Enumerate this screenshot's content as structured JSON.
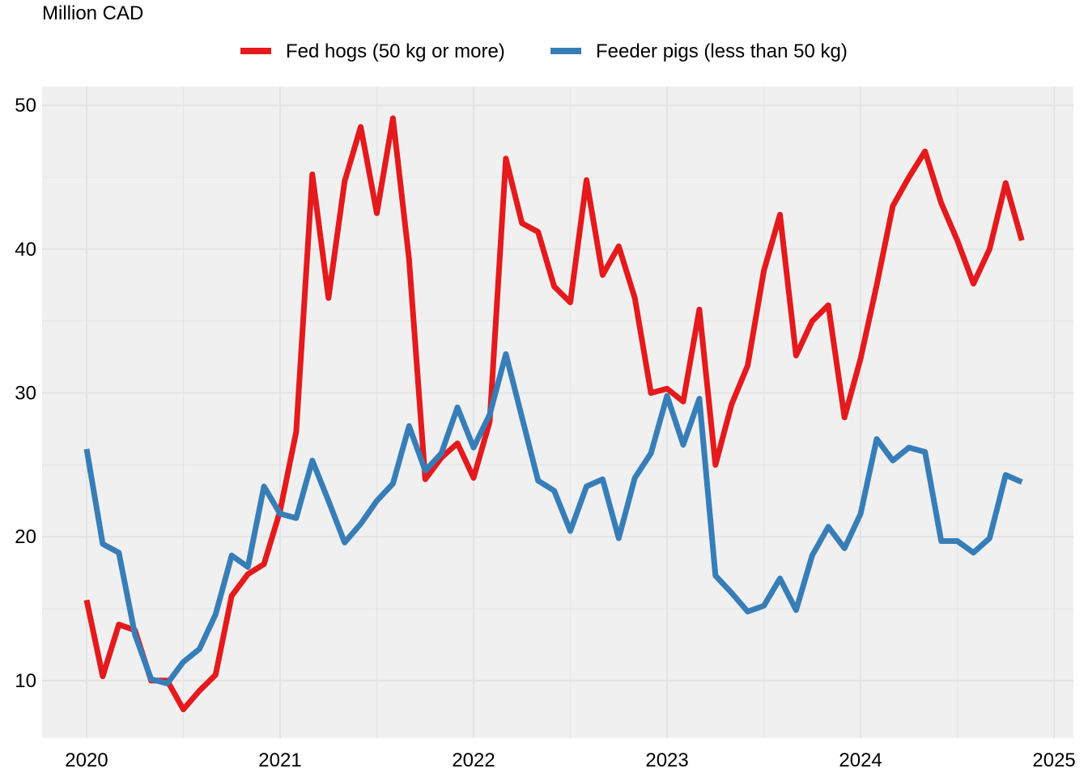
{
  "chart_data": {
    "type": "line",
    "title": "",
    "ylabel": "Million CAD",
    "xlabel": "",
    "xlim": [
      2019.77,
      2025.1
    ],
    "ylim": [
      6.0,
      51.3
    ],
    "x_ticks": [
      2020,
      2021,
      2022,
      2023,
      2024,
      2025
    ],
    "x_tick_labels": [
      "2020",
      "2021",
      "2022",
      "2023",
      "2024",
      "2025"
    ],
    "y_ticks": [
      10,
      20,
      30,
      40,
      50
    ],
    "y_tick_labels": [
      "10",
      "20",
      "30",
      "40",
      "50"
    ],
    "grid": true,
    "legend_position": "top",
    "background_color": "#f0f0f0",
    "grid_color": "#e3e3e3",
    "series": [
      {
        "name": "Fed hogs (50 kg or more)",
        "color": "#e41a1c",
        "values": [
          15.6,
          10.3,
          13.9,
          13.5,
          10.0,
          10.0,
          8.0,
          9.3,
          10.4,
          15.9,
          17.4,
          18.1,
          21.8,
          27.3,
          45.2,
          36.6,
          44.7,
          48.5,
          42.5,
          49.1,
          39.3,
          24.0,
          25.5,
          26.5,
          24.1,
          28.0,
          46.3,
          41.8,
          41.2,
          37.4,
          36.3,
          44.8,
          38.2,
          40.2,
          36.6,
          30.0,
          30.3,
          29.4,
          35.8,
          25.0,
          29.2,
          31.9,
          38.5,
          42.4,
          32.6,
          35.0,
          36.1,
          28.3,
          32.4,
          37.5,
          43.0,
          45.0,
          46.8,
          43.2,
          40.6,
          37.6,
          40.0,
          44.6,
          40.6
        ],
        "x": [
          "2020-01",
          "2020-02",
          "2020-03",
          "2020-04",
          "2020-05",
          "2020-06",
          "2020-07",
          "2020-08",
          "2020-09",
          "2020-10",
          "2020-11",
          "2020-12",
          "2021-01",
          "2021-02",
          "2021-03",
          "2021-04",
          "2021-05",
          "2021-06",
          "2021-07",
          "2021-08",
          "2021-09",
          "2021-10",
          "2021-11",
          "2021-12",
          "2022-01",
          "2022-02",
          "2022-03",
          "2022-04",
          "2022-05",
          "2022-06",
          "2022-07",
          "2022-08",
          "2022-09",
          "2022-10",
          "2022-11",
          "2022-12",
          "2023-01",
          "2023-02",
          "2023-03",
          "2023-04",
          "2023-05",
          "2023-06",
          "2023-07",
          "2023-08",
          "2023-09",
          "2023-10",
          "2023-11",
          "2023-12",
          "2024-01",
          "2024-02",
          "2024-03",
          "2024-04",
          "2024-05",
          "2024-06",
          "2024-07",
          "2024-08",
          "2024-09",
          "2024-10",
          "2024-11"
        ]
      },
      {
        "name": "Feeder pigs (less than 50 kg)",
        "color": "#377eb8",
        "values": [
          26.1,
          19.5,
          18.9,
          13.2,
          10.1,
          9.8,
          11.3,
          12.2,
          14.6,
          18.7,
          17.9,
          23.5,
          21.6,
          21.3,
          25.3,
          22.5,
          19.6,
          20.9,
          22.5,
          23.7,
          27.7,
          24.6,
          25.8,
          29.0,
          26.2,
          28.5,
          32.7,
          28.3,
          23.9,
          23.2,
          20.4,
          23.5,
          24.0,
          19.9,
          24.1,
          25.8,
          29.8,
          26.4,
          29.6,
          17.3,
          16.1,
          14.8,
          15.2,
          17.1,
          14.9,
          18.7,
          20.7,
          19.2,
          21.6,
          26.8,
          25.3,
          26.2,
          25.9,
          19.7,
          19.7,
          18.9,
          19.9,
          24.3,
          23.8
        ],
        "x": [
          "2020-01",
          "2020-02",
          "2020-03",
          "2020-04",
          "2020-05",
          "2020-06",
          "2020-07",
          "2020-08",
          "2020-09",
          "2020-10",
          "2020-11",
          "2020-12",
          "2021-01",
          "2021-02",
          "2021-03",
          "2021-04",
          "2021-05",
          "2021-06",
          "2021-07",
          "2021-08",
          "2021-09",
          "2021-10",
          "2021-11",
          "2021-12",
          "2022-01",
          "2022-02",
          "2022-03",
          "2022-04",
          "2022-05",
          "2022-06",
          "2022-07",
          "2022-08",
          "2022-09",
          "2022-10",
          "2022-11",
          "2022-12",
          "2023-01",
          "2023-02",
          "2023-03",
          "2023-04",
          "2023-05",
          "2023-06",
          "2023-07",
          "2023-08",
          "2023-09",
          "2023-10",
          "2023-11",
          "2023-12",
          "2024-01",
          "2024-02",
          "2024-03",
          "2024-04",
          "2024-05",
          "2024-06",
          "2024-07",
          "2024-08",
          "2024-09",
          "2024-10",
          "2024-11"
        ]
      }
    ]
  }
}
